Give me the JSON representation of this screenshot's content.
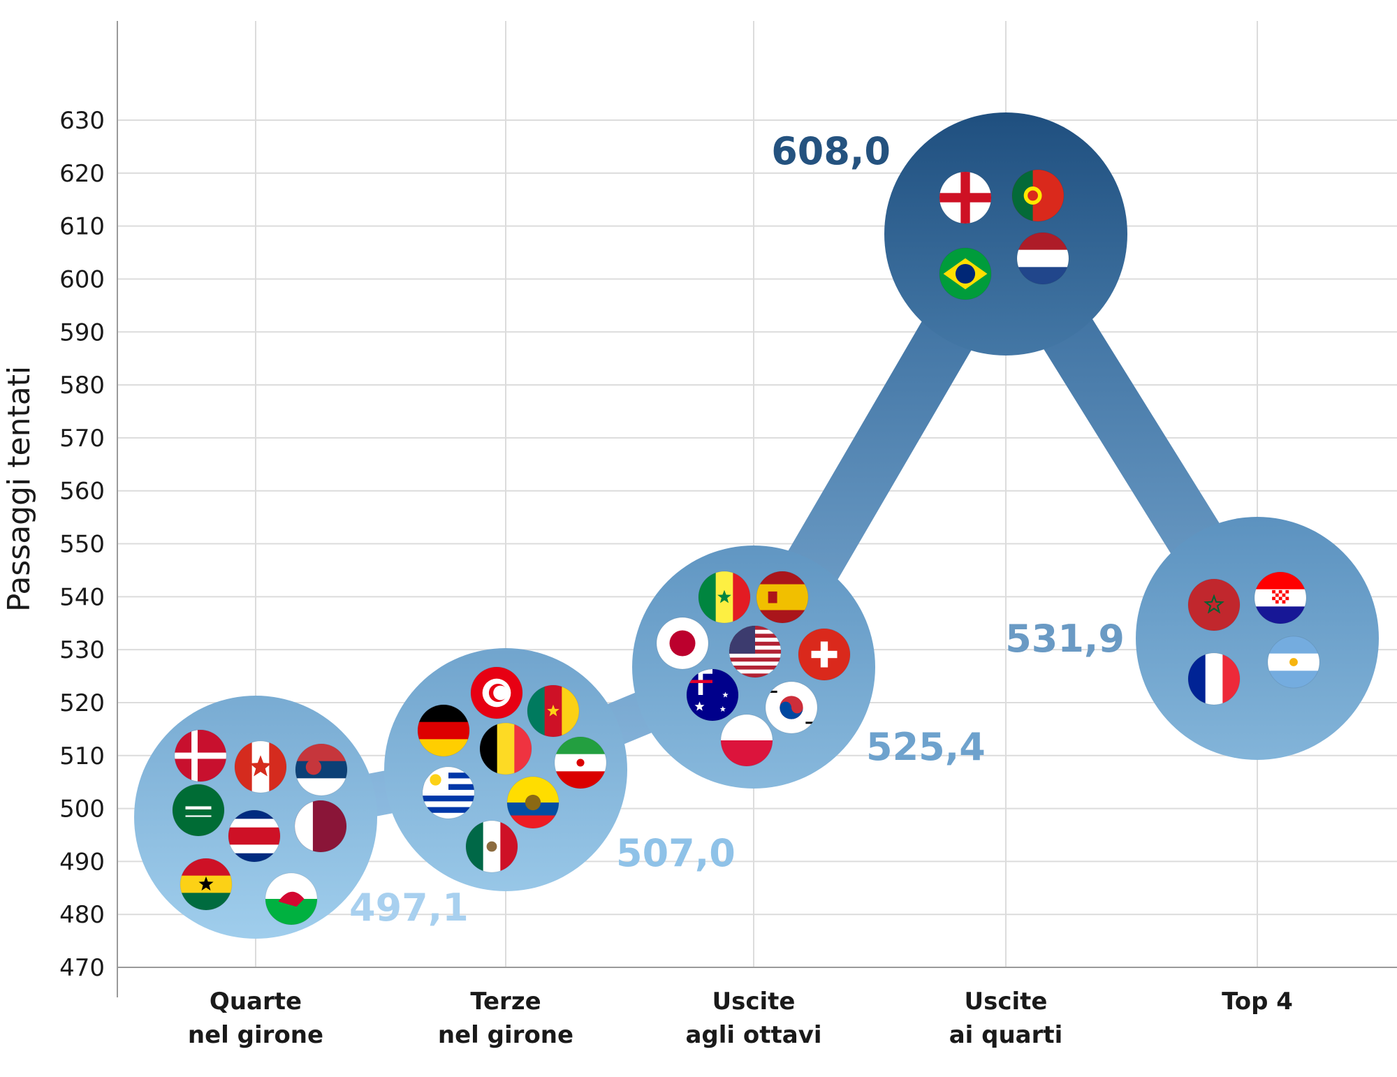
{
  "chart_data": {
    "type": "scatter",
    "ylabel": "Passaggi tentati",
    "ylim": [
      470,
      630
    ],
    "yticks": [
      470,
      480,
      490,
      500,
      510,
      520,
      530,
      540,
      550,
      560,
      570,
      580,
      590,
      600,
      610,
      620,
      630
    ],
    "grid": true,
    "categories": [
      [
        "Quarte",
        "nel girone"
      ],
      [
        "Terze",
        "nel girone"
      ],
      [
        "Uscite",
        "agli ottavi"
      ],
      [
        "Uscite",
        "ai quarti"
      ],
      [
        "Top 4"
      ]
    ],
    "values": [
      497.1,
      507.0,
      525.4,
      608.0,
      531.9
    ],
    "value_labels": [
      "497,1",
      "507,0",
      "525,4",
      "608,0",
      "531,9"
    ],
    "groups": [
      {
        "flags": [
          "denmark",
          "canada",
          "serbia",
          "saudi-arabia",
          "costa-rica",
          "qatar",
          "ghana",
          "wales"
        ]
      },
      {
        "flags": [
          "tunisia",
          "cameroon",
          "germany",
          "belgium",
          "iran",
          "uruguay",
          "ecuador",
          "mexico"
        ]
      },
      {
        "flags": [
          "senegal",
          "spain",
          "japan",
          "usa",
          "switzerland",
          "australia",
          "south-korea",
          "poland"
        ]
      },
      {
        "flags": [
          "england",
          "portugal",
          "brazil",
          "netherlands"
        ]
      },
      {
        "flags": [
          "morocco",
          "croatia",
          "france",
          "argentina"
        ]
      }
    ],
    "colors": {
      "bubble_light": "#97c6e8",
      "bubble_dark": "#1f4f7f",
      "connector": "#4e86b5",
      "grid": "#dcdcdc"
    }
  }
}
